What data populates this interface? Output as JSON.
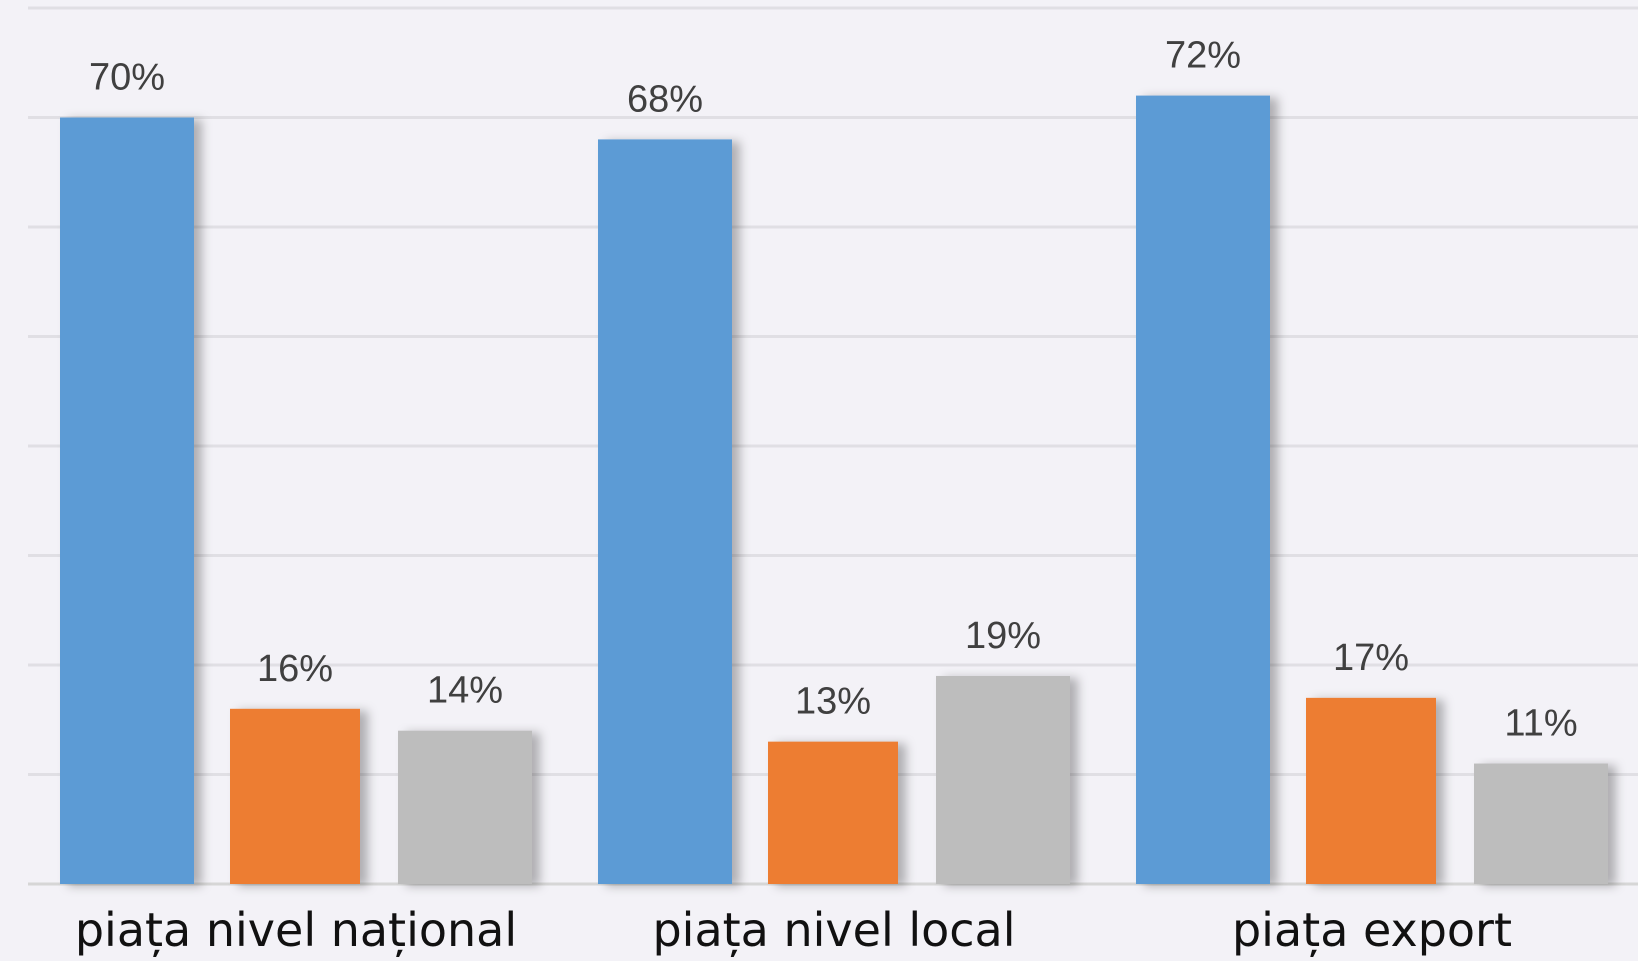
{
  "chart_data": {
    "type": "bar",
    "categories": [
      "piața nivel național",
      "piața nivel local",
      "piața export"
    ],
    "series": [
      {
        "values": [
          70,
          68,
          72
        ],
        "color": "#5b9bd5"
      },
      {
        "values": [
          16,
          13,
          17
        ],
        "color": "#ed7d31"
      },
      {
        "values": [
          14,
          19,
          11
        ],
        "color": "#bdbdbd"
      }
    ],
    "data_labels": [
      [
        "70%",
        "68%",
        "72%"
      ],
      [
        "16%",
        "13%",
        "17%"
      ],
      [
        "14%",
        "19%",
        "11%"
      ]
    ],
    "value_suffix": "%",
    "ylim": [
      0,
      80
    ],
    "grid": true,
    "legend": "none",
    "title": "",
    "xlabel": "",
    "ylabel": ""
  }
}
